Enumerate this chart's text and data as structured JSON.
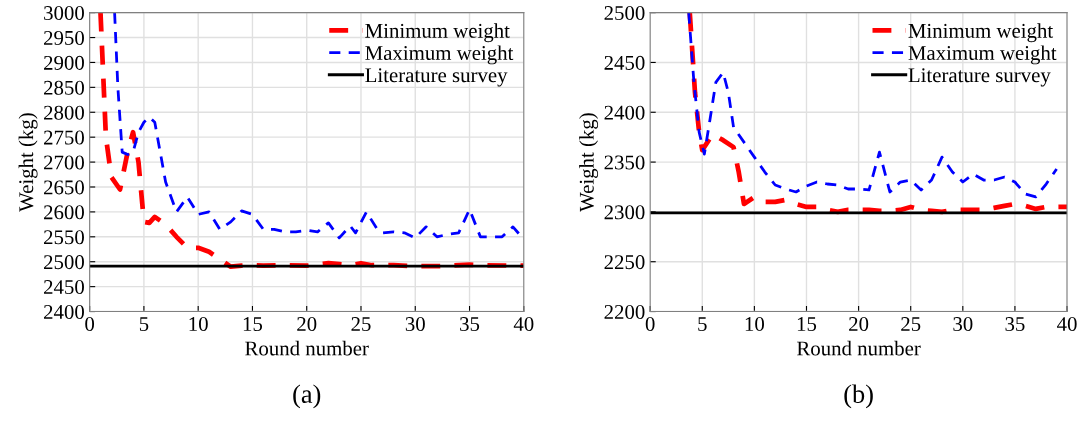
{
  "chart_data": [
    {
      "type": "line",
      "xlabel": "Round number",
      "ylabel": "Weight (kg)",
      "annotations": [
        "(a)"
      ],
      "xlim": [
        0,
        40
      ],
      "xticks": [
        0,
        5,
        10,
        15,
        20,
        25,
        30,
        35,
        40
      ],
      "ylim": [
        2400,
        3000
      ],
      "yticks": [
        2400,
        2450,
        2500,
        2550,
        2600,
        2650,
        2700,
        2750,
        2800,
        2850,
        2900,
        2950,
        3000
      ],
      "grid": true,
      "legend": "top right",
      "marker": "none",
      "series": [
        {
          "name": "Minimum weight",
          "color": "#ff0000",
          "line_style": "dashed",
          "x": [
            1,
            1.5,
            2,
            2.8,
            3.5,
            4,
            4.5,
            5,
            5.5,
            6,
            7,
            8,
            9,
            10,
            11,
            12,
            13,
            14,
            15,
            16,
            18,
            20,
            22,
            23,
            24,
            25,
            26,
            28,
            30,
            32,
            35,
            36,
            40
          ],
          "values": [
            3000,
            2750,
            2670,
            2645,
            2720,
            2760,
            2700,
            2580,
            2578,
            2590,
            2575,
            2550,
            2528,
            2528,
            2520,
            2505,
            2490,
            2492,
            2493,
            2492,
            2493,
            2492,
            2497,
            2495,
            2493,
            2497,
            2493,
            2493,
            2491,
            2491,
            2494,
            2493,
            2492
          ]
        },
        {
          "name": "Maximum weight",
          "color": "#0000ff",
          "line_style": "dashed",
          "x": [
            2.3,
            2.6,
            3,
            3.5,
            4,
            4.5,
            5,
            5.5,
            6,
            7,
            8,
            9,
            10,
            11,
            12,
            13,
            14,
            15,
            16,
            17,
            18,
            19,
            20,
            21,
            22,
            23,
            24,
            24.5,
            25.5,
            26.5,
            27,
            28,
            29,
            30,
            31,
            32,
            33,
            34,
            35,
            36,
            37,
            38,
            39,
            40
          ],
          "values": [
            3000,
            2850,
            2720,
            2715,
            2720,
            2760,
            2780,
            2790,
            2780,
            2660,
            2600,
            2630,
            2595,
            2600,
            2565,
            2580,
            2602,
            2595,
            2565,
            2565,
            2560,
            2560,
            2563,
            2560,
            2578,
            2548,
            2572,
            2558,
            2600,
            2565,
            2558,
            2560,
            2558,
            2548,
            2570,
            2550,
            2555,
            2558,
            2605,
            2550,
            2550,
            2550,
            2570,
            2545
          ]
        },
        {
          "name": "Literature survey",
          "color": "#000000",
          "line_style": "solid",
          "x": [
            0,
            40
          ],
          "values": [
            2491,
            2491
          ]
        }
      ]
    },
    {
      "type": "line",
      "xlabel": "Round number",
      "ylabel": "Weight (kg)",
      "annotations": [
        "(b)"
      ],
      "xlim": [
        0,
        40
      ],
      "xticks": [
        0,
        5,
        10,
        15,
        20,
        25,
        30,
        35,
        40
      ],
      "ylim": [
        2200,
        2500
      ],
      "yticks": [
        2200,
        2250,
        2300,
        2350,
        2400,
        2450,
        2500
      ],
      "grid": true,
      "legend": "top right",
      "marker": "none",
      "series": [
        {
          "name": "Minimum weight",
          "color": "#ff0000",
          "line_style": "dashed",
          "x": [
            3.8,
            4.3,
            4.7,
            5,
            5.5,
            6,
            7,
            8,
            8.5,
            9,
            10,
            11,
            12,
            13,
            14,
            15,
            16,
            17,
            18,
            19,
            20,
            21,
            22,
            23,
            24,
            25,
            26,
            27,
            28,
            29,
            30,
            31,
            32,
            33,
            34,
            35,
            36,
            37,
            38,
            39,
            40
          ],
          "values": [
            2500,
            2420,
            2380,
            2362,
            2370,
            2378,
            2372,
            2365,
            2340,
            2308,
            2315,
            2310,
            2310,
            2312,
            2308,
            2305,
            2305,
            2302,
            2300,
            2302,
            2302,
            2302,
            2301,
            2301,
            2302,
            2305,
            2302,
            2301,
            2300,
            2302,
            2302,
            2302,
            2302,
            2304,
            2306,
            2308,
            2306,
            2303,
            2305,
            2305,
            2305
          ]
        },
        {
          "name": "Maximum weight",
          "color": "#0000ff",
          "line_style": "dashed",
          "x": [
            3.7,
            4.2,
            4.7,
            5.2,
            5.7,
            6.3,
            7,
            7.5,
            8,
            9,
            10,
            11,
            12,
            13,
            14,
            15,
            16,
            17,
            18,
            19,
            20,
            21,
            22,
            23,
            24,
            25,
            26,
            27,
            28,
            29,
            30,
            31,
            32,
            33,
            34,
            35,
            36,
            37,
            38,
            39
          ],
          "values": [
            2500,
            2430,
            2380,
            2358,
            2390,
            2430,
            2440,
            2420,
            2385,
            2370,
            2355,
            2340,
            2327,
            2323,
            2320,
            2326,
            2330,
            2328,
            2327,
            2323,
            2323,
            2322,
            2360,
            2320,
            2330,
            2332,
            2322,
            2332,
            2355,
            2340,
            2330,
            2338,
            2332,
            2332,
            2335,
            2330,
            2318,
            2315,
            2328,
            2343
          ]
        },
        {
          "name": "Literature survey",
          "color": "#000000",
          "line_style": "solid",
          "x": [
            0,
            40
          ],
          "values": [
            2299,
            2299
          ]
        }
      ]
    }
  ]
}
